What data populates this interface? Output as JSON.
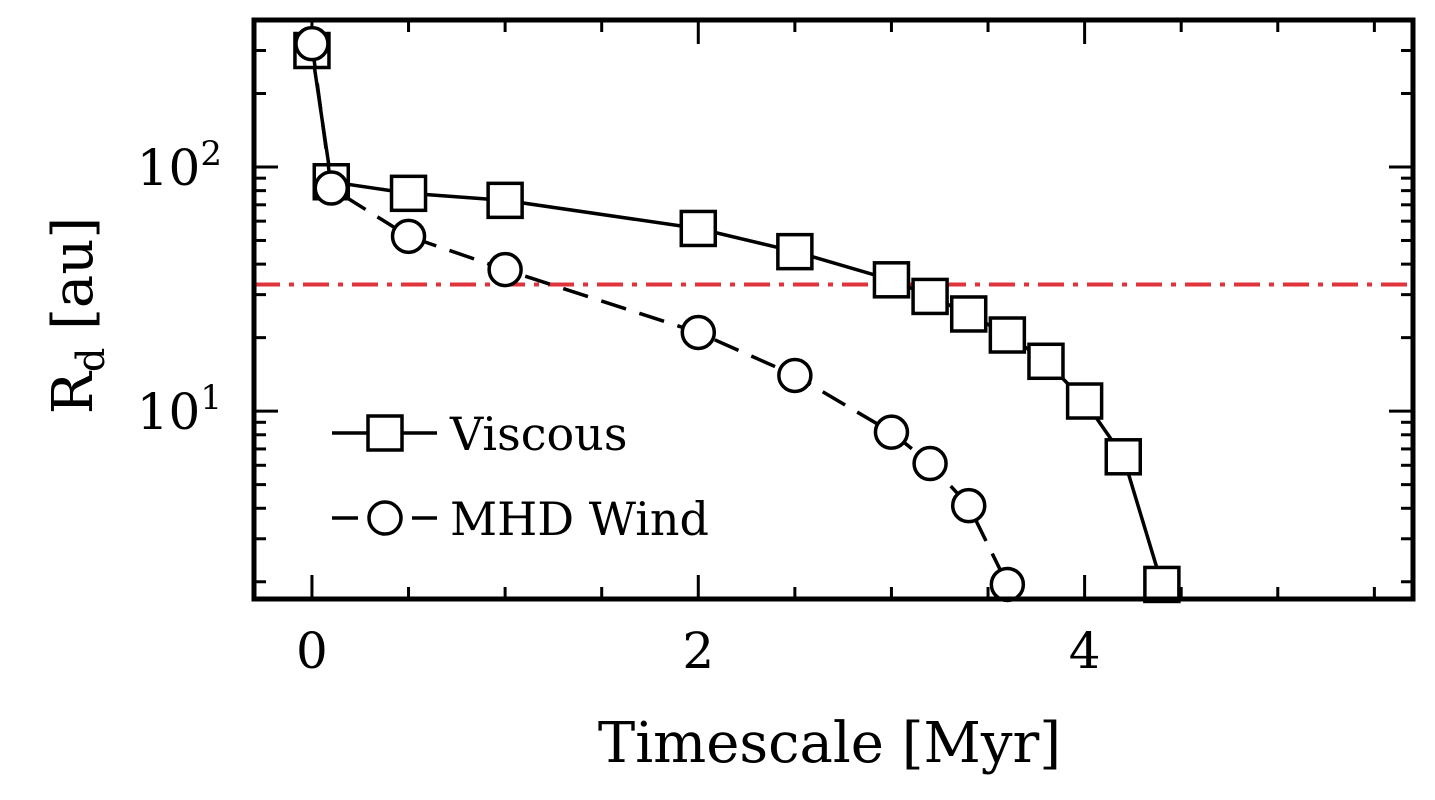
{
  "chart_data": {
    "type": "line",
    "title": "",
    "xlabel": "Timescale [Myr]",
    "ylabel_main": "R",
    "ylabel_sub": "d",
    "ylabel_unit": "[au]",
    "xlim": [
      -0.3,
      5.7
    ],
    "ylim": [
      1.7,
      400
    ],
    "yscale": "log",
    "grid": false,
    "legend_position": "lower-left",
    "x_ticks": [
      {
        "value": 0,
        "label": "0"
      },
      {
        "value": 2,
        "label": "2"
      },
      {
        "value": 4,
        "label": "4"
      }
    ],
    "y_ticks": [
      {
        "value": 10,
        "base": "10",
        "exp": "1"
      },
      {
        "value": 100,
        "base": "10",
        "exp": "2"
      }
    ],
    "series": [
      {
        "name": "Viscous",
        "marker": "square",
        "linestyle": "solid",
        "x": [
          0,
          0.1,
          0.5,
          1.0,
          2.0,
          2.5,
          3.0,
          3.2,
          3.4,
          3.6,
          3.8,
          4.0,
          4.2,
          4.4
        ],
        "y": [
          300,
          87,
          78,
          73,
          56,
          45,
          34.5,
          29.5,
          25,
          20.5,
          16,
          11,
          6.5,
          1.95
        ]
      },
      {
        "name": "MHD Wind",
        "marker": "circle",
        "linestyle": "dashed",
        "x": [
          0,
          0.1,
          0.5,
          1.0,
          2.0,
          2.5,
          3.0,
          3.2,
          3.4,
          3.6
        ],
        "y": [
          320,
          82,
          52,
          38,
          21,
          14,
          8.2,
          6.1,
          4.1,
          1.95
        ]
      }
    ],
    "reference_line": {
      "y": 33,
      "color": "#e0343c",
      "linestyle": "dash-dot"
    }
  }
}
